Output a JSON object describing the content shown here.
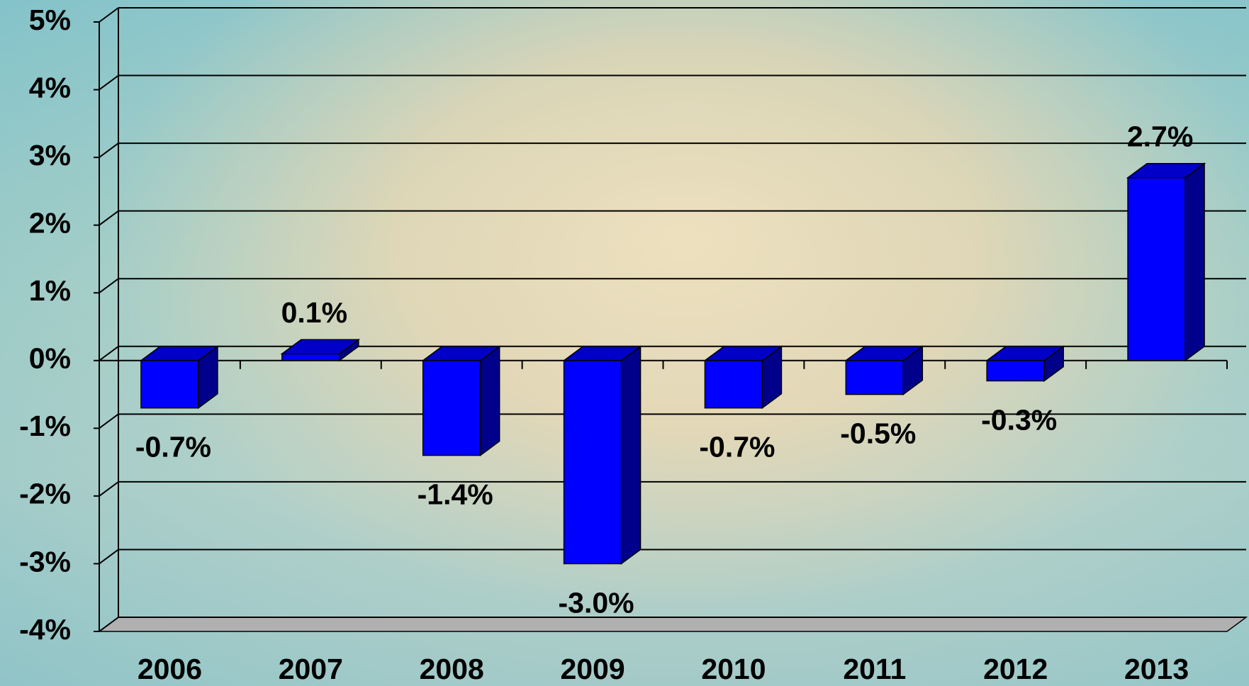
{
  "chart_data": {
    "type": "bar3d",
    "categories": [
      "2006",
      "2007",
      "2008",
      "2009",
      "2010",
      "2011",
      "2012",
      "2013"
    ],
    "values": [
      -0.7,
      0.1,
      -1.4,
      -3.0,
      -0.7,
      -0.5,
      -0.3,
      2.7
    ],
    "value_labels": [
      "-0.7%",
      "0.1%",
      "-1.4%",
      "-3.0%",
      "-0.7%",
      "-0.5%",
      "-0.3%",
      "2.7%"
    ],
    "color": "#0000ff",
    "ylim": [
      -4,
      5
    ],
    "yticks": [
      {
        "value": 5,
        "label": "5%"
      },
      {
        "value": 4,
        "label": "4%"
      },
      {
        "value": 3,
        "label": "3%"
      },
      {
        "value": 2,
        "label": "2%"
      },
      {
        "value": 1,
        "label": "1%"
      },
      {
        "value": 0,
        "label": "0%"
      },
      {
        "value": -1,
        "label": "-1%"
      },
      {
        "value": -2,
        "label": "-2%"
      },
      {
        "value": -3,
        "label": "-3%"
      },
      {
        "value": -4,
        "label": "-4%"
      }
    ],
    "grid": true
  }
}
